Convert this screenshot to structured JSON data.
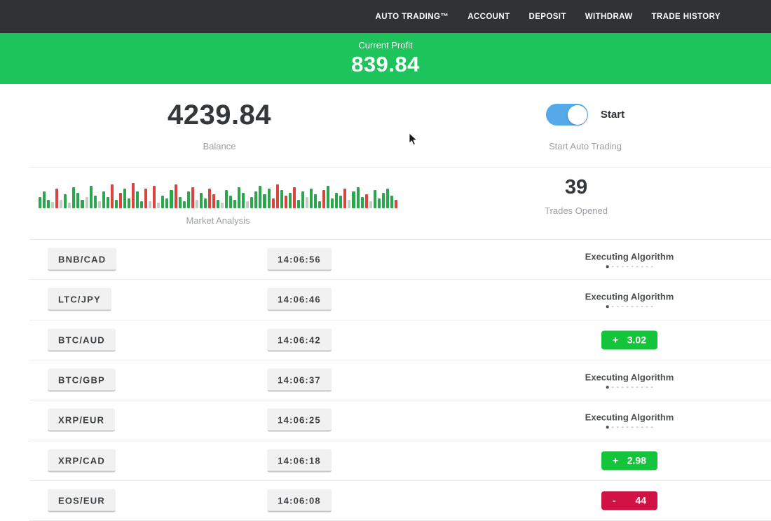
{
  "nav": {
    "items": [
      "AUTO TRADING™",
      "ACCOUNT",
      "DEPOSIT",
      "WITHDRAW",
      "TRADE HISTORY"
    ]
  },
  "profit_banner": {
    "label": "Current Profit",
    "value": "839.84"
  },
  "stats": {
    "balance": {
      "value": "4239.84",
      "label": "Balance"
    },
    "auto_trading": {
      "toggle_label": "Start",
      "label": "Start Auto Trading",
      "enabled": true
    },
    "market_analysis": {
      "label": "Market Analysis"
    },
    "trades_opened": {
      "value": "39",
      "label": "Trades Opened"
    }
  },
  "chart_data": {
    "type": "bar",
    "title": "Market Analysis",
    "note": "decorative candlestick-style activity strip; bars encoded as [height_px, color] with g=green, r=red, n=neutral gray; baseline bottom-aligned, max height 40",
    "bar_colors": {
      "g": "#2aa74d",
      "r": "#d9443f",
      "n": "#c4ccc5"
    },
    "bars": [
      [
        16,
        "g"
      ],
      [
        24,
        "g"
      ],
      [
        12,
        "g"
      ],
      [
        9,
        "n"
      ],
      [
        28,
        "r"
      ],
      [
        12,
        "n"
      ],
      [
        20,
        "g"
      ],
      [
        8,
        "n"
      ],
      [
        30,
        "g"
      ],
      [
        22,
        "g"
      ],
      [
        12,
        "g"
      ],
      [
        16,
        "n"
      ],
      [
        32,
        "g"
      ],
      [
        18,
        "g"
      ],
      [
        10,
        "n"
      ],
      [
        24,
        "g"
      ],
      [
        16,
        "g"
      ],
      [
        34,
        "r"
      ],
      [
        12,
        "g"
      ],
      [
        22,
        "r"
      ],
      [
        28,
        "g"
      ],
      [
        14,
        "g"
      ],
      [
        36,
        "r"
      ],
      [
        24,
        "g"
      ],
      [
        10,
        "g"
      ],
      [
        28,
        "r"
      ],
      [
        10,
        "n"
      ],
      [
        32,
        "r"
      ],
      [
        8,
        "n"
      ],
      [
        18,
        "g"
      ],
      [
        14,
        "g"
      ],
      [
        26,
        "g"
      ],
      [
        34,
        "r"
      ],
      [
        16,
        "g"
      ],
      [
        10,
        "g"
      ],
      [
        24,
        "g"
      ],
      [
        30,
        "r"
      ],
      [
        12,
        "n"
      ],
      [
        22,
        "g"
      ],
      [
        14,
        "g"
      ],
      [
        28,
        "r"
      ],
      [
        20,
        "r"
      ],
      [
        12,
        "g"
      ],
      [
        8,
        "n"
      ],
      [
        26,
        "g"
      ],
      [
        18,
        "g"
      ],
      [
        12,
        "g"
      ],
      [
        30,
        "g"
      ],
      [
        22,
        "g"
      ],
      [
        10,
        "n"
      ],
      [
        16,
        "g"
      ],
      [
        24,
        "g"
      ],
      [
        32,
        "g"
      ],
      [
        20,
        "g"
      ],
      [
        28,
        "g"
      ],
      [
        14,
        "r"
      ],
      [
        34,
        "r"
      ],
      [
        26,
        "g"
      ],
      [
        18,
        "r"
      ],
      [
        22,
        "g"
      ],
      [
        30,
        "r"
      ],
      [
        12,
        "g"
      ],
      [
        24,
        "g"
      ],
      [
        16,
        "n"
      ],
      [
        28,
        "g"
      ],
      [
        20,
        "g"
      ],
      [
        10,
        "g"
      ],
      [
        26,
        "r"
      ],
      [
        32,
        "g"
      ],
      [
        14,
        "g"
      ],
      [
        22,
        "g"
      ],
      [
        18,
        "g"
      ],
      [
        28,
        "r"
      ],
      [
        12,
        "n"
      ],
      [
        24,
        "g"
      ],
      [
        30,
        "g"
      ],
      [
        16,
        "g"
      ],
      [
        20,
        "r"
      ],
      [
        10,
        "n"
      ],
      [
        26,
        "g"
      ],
      [
        14,
        "g"
      ],
      [
        22,
        "g"
      ],
      [
        28,
        "g"
      ],
      [
        18,
        "g"
      ],
      [
        12,
        "r"
      ]
    ]
  },
  "trades": {
    "executing_label": "Executing Algorithm",
    "progress_dots": 10,
    "rows": [
      {
        "pair": "BNB/CAD",
        "time": "14:06:56",
        "status": "executing"
      },
      {
        "pair": "LTC/JPY",
        "time": "14:06:46",
        "status": "executing"
      },
      {
        "pair": "BTC/AUD",
        "time": "14:06:42",
        "status": "profit",
        "sign": "+",
        "amount": "3.02"
      },
      {
        "pair": "BTC/GBP",
        "time": "14:06:37",
        "status": "executing"
      },
      {
        "pair": "XRP/EUR",
        "time": "14:06:25",
        "status": "executing"
      },
      {
        "pair": "XRP/CAD",
        "time": "14:06:18",
        "status": "profit",
        "sign": "+",
        "amount": "2.98"
      },
      {
        "pair": "EOS/EUR",
        "time": "14:06:08",
        "status": "loss",
        "sign": "-",
        "amount": "44"
      }
    ]
  },
  "colors": {
    "nav_bg": "#303333",
    "banner_green": "#1cc45b",
    "badge_green": "#14c53c",
    "badge_red": "#d01245",
    "toggle_blue": "#56aae9",
    "bar_green": "#2aa74d",
    "bar_red": "#d9443f"
  }
}
